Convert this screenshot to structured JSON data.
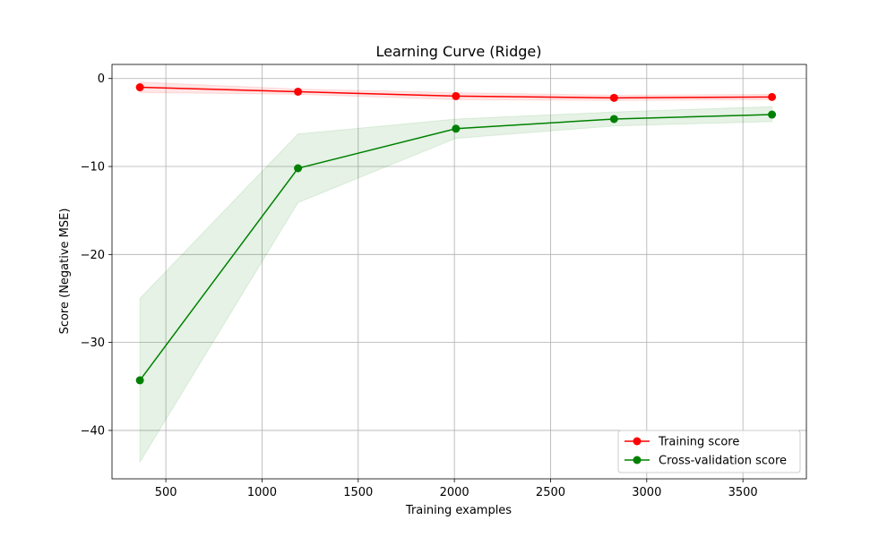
{
  "chart_data": {
    "type": "line",
    "title": "Learning Curve (Ridge)",
    "xlabel": "Training examples",
    "ylabel": "Score (Negative MSE)",
    "xlim": [
      220,
      3830
    ],
    "ylim": [
      -45.5,
      1.6
    ],
    "xticks": [
      500,
      1000,
      1500,
      2000,
      2500,
      3000,
      3500
    ],
    "yticks": [
      0,
      -10,
      -20,
      -30,
      -40
    ],
    "grid": true,
    "legend_position": "bottom-right",
    "x": [
      365,
      1187,
      2008,
      2830,
      3651
    ],
    "series": [
      {
        "name": "Training score",
        "color": "#ff0000",
        "values": [
          -1.0,
          -1.5,
          -2.0,
          -2.2,
          -2.1
        ],
        "band_lower": [
          -1.6,
          -1.8,
          -2.4,
          -2.5,
          -2.4
        ],
        "band_upper": [
          -0.4,
          -1.2,
          -1.6,
          -1.9,
          -1.8
        ]
      },
      {
        "name": "Cross-validation score",
        "color": "#008000",
        "values": [
          -34.3,
          -10.2,
          -5.7,
          -4.6,
          -4.1
        ],
        "band_lower": [
          -43.6,
          -14.1,
          -6.8,
          -5.4,
          -4.9
        ],
        "band_upper": [
          -25.0,
          -6.3,
          -4.6,
          -3.8,
          -3.2
        ]
      }
    ]
  }
}
